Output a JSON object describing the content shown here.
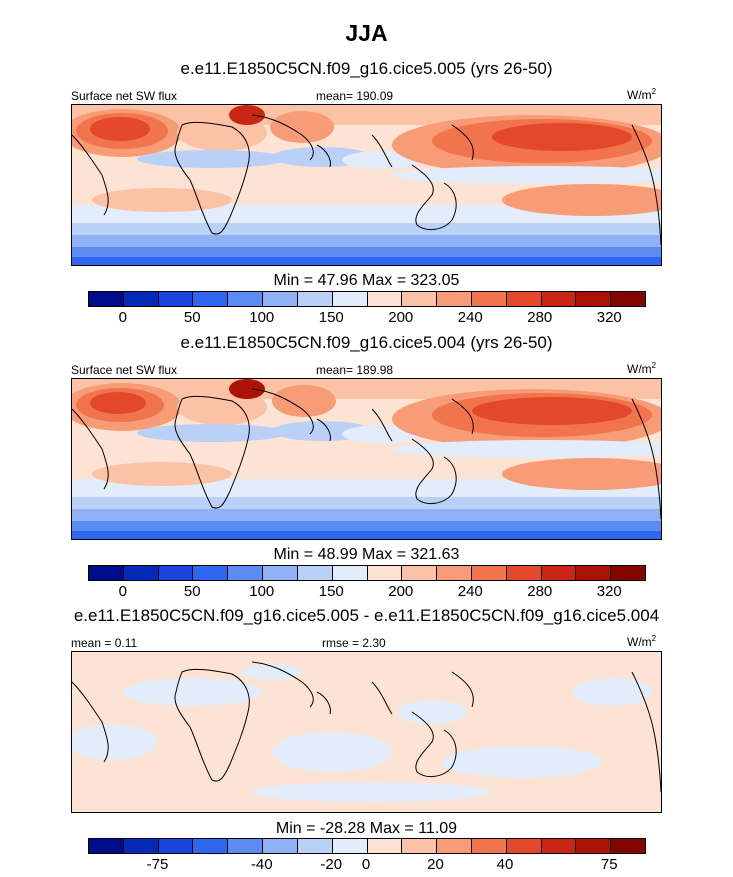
{
  "page": {
    "title": "JJA",
    "units_label": "W/m",
    "units_sup": "2"
  },
  "panels": [
    {
      "case": "e.e11.E1850C5CN.f09_g16.cice5.005 (yrs 26-50)",
      "variable": "Surface net SW flux",
      "mean_label": "mean= 190.09",
      "minmax": "Min =  47.96 Max = 323.05"
    },
    {
      "case": "e.e11.E1850C5CN.f09_g16.cice5.004 (yrs 26-50)",
      "variable": "Surface net SW flux",
      "mean_label": "mean= 189.98",
      "minmax": "Min =  48.99 Max = 321.63"
    },
    {
      "case": "e.e11.E1850C5CN.f09_g16.cice5.005 - e.e11.E1850C5CN.f09_g16.cice5.004",
      "mean_label": "mean =   0.11",
      "rmse_label": "rmse =   2.30",
      "minmax": "Min = -28.28 Max =  11.09"
    }
  ],
  "colorbars": {
    "abs_colors": [
      "#000c8b",
      "#0729b8",
      "#1846dc",
      "#2e66f0",
      "#5a8cf4",
      "#8fb2f6",
      "#bbd0f7",
      "#e2ecfa",
      "#fde3d3",
      "#fbc2a5",
      "#f89c77",
      "#f2744d",
      "#e4482a",
      "#c92613",
      "#aa1306",
      "#820500"
    ],
    "abs_ticks": [
      "0",
      "50",
      "100",
      "150",
      "200",
      "240",
      "280",
      "320"
    ],
    "diff_colors": [
      "#000c8b",
      "#0729b8",
      "#1846dc",
      "#2e66f0",
      "#5a8cf4",
      "#8fb2f6",
      "#bbd0f7",
      "#e2ecfa",
      "#fde3d3",
      "#fbc2a5",
      "#f89c77",
      "#f2744d",
      "#e4482a",
      "#c92613",
      "#aa1306",
      "#820500"
    ],
    "diff_ticks": [
      "-75",
      "-40",
      "-20",
      "0",
      "20",
      "40",
      "75"
    ]
  },
  "chart_data": [
    {
      "type": "heatmap",
      "title": "JJA",
      "subtitle": "e.e11.E1850C5CN.f09_g16.cice5.005 (yrs 26-50)",
      "variable": "Surface net SW flux",
      "units": "W/m2",
      "mean": 190.09,
      "min": 47.96,
      "max": 323.05,
      "contour_levels": [
        0,
        25,
        50,
        75,
        100,
        125,
        150,
        175,
        200,
        220,
        240,
        260,
        280,
        300,
        320
      ],
      "colorbar_tick_labels": [
        0,
        50,
        100,
        150,
        200,
        240,
        280,
        320
      ]
    },
    {
      "type": "heatmap",
      "subtitle": "e.e11.E1850C5CN.f09_g16.cice5.004 (yrs 26-50)",
      "variable": "Surface net SW flux",
      "units": "W/m2",
      "mean": 189.98,
      "min": 48.99,
      "max": 321.63,
      "contour_levels": [
        0,
        25,
        50,
        75,
        100,
        125,
        150,
        175,
        200,
        220,
        240,
        260,
        280,
        300,
        320
      ],
      "colorbar_tick_labels": [
        0,
        50,
        100,
        150,
        200,
        240,
        280,
        320
      ]
    },
    {
      "type": "heatmap",
      "subtitle": "e.e11.E1850C5CN.f09_g16.cice5.005 - e.e11.E1850C5CN.f09_g16.cice5.004",
      "units": "W/m2",
      "mean": 0.11,
      "rmse": 2.3,
      "min": -28.28,
      "max": 11.09,
      "contour_levels": [
        -100,
        -75,
        -50,
        -40,
        -30,
        -20,
        -10,
        0,
        10,
        20,
        30,
        40,
        50,
        75,
        100
      ],
      "colorbar_tick_labels": [
        -75,
        -40,
        -20,
        0,
        20,
        40,
        75
      ]
    }
  ]
}
